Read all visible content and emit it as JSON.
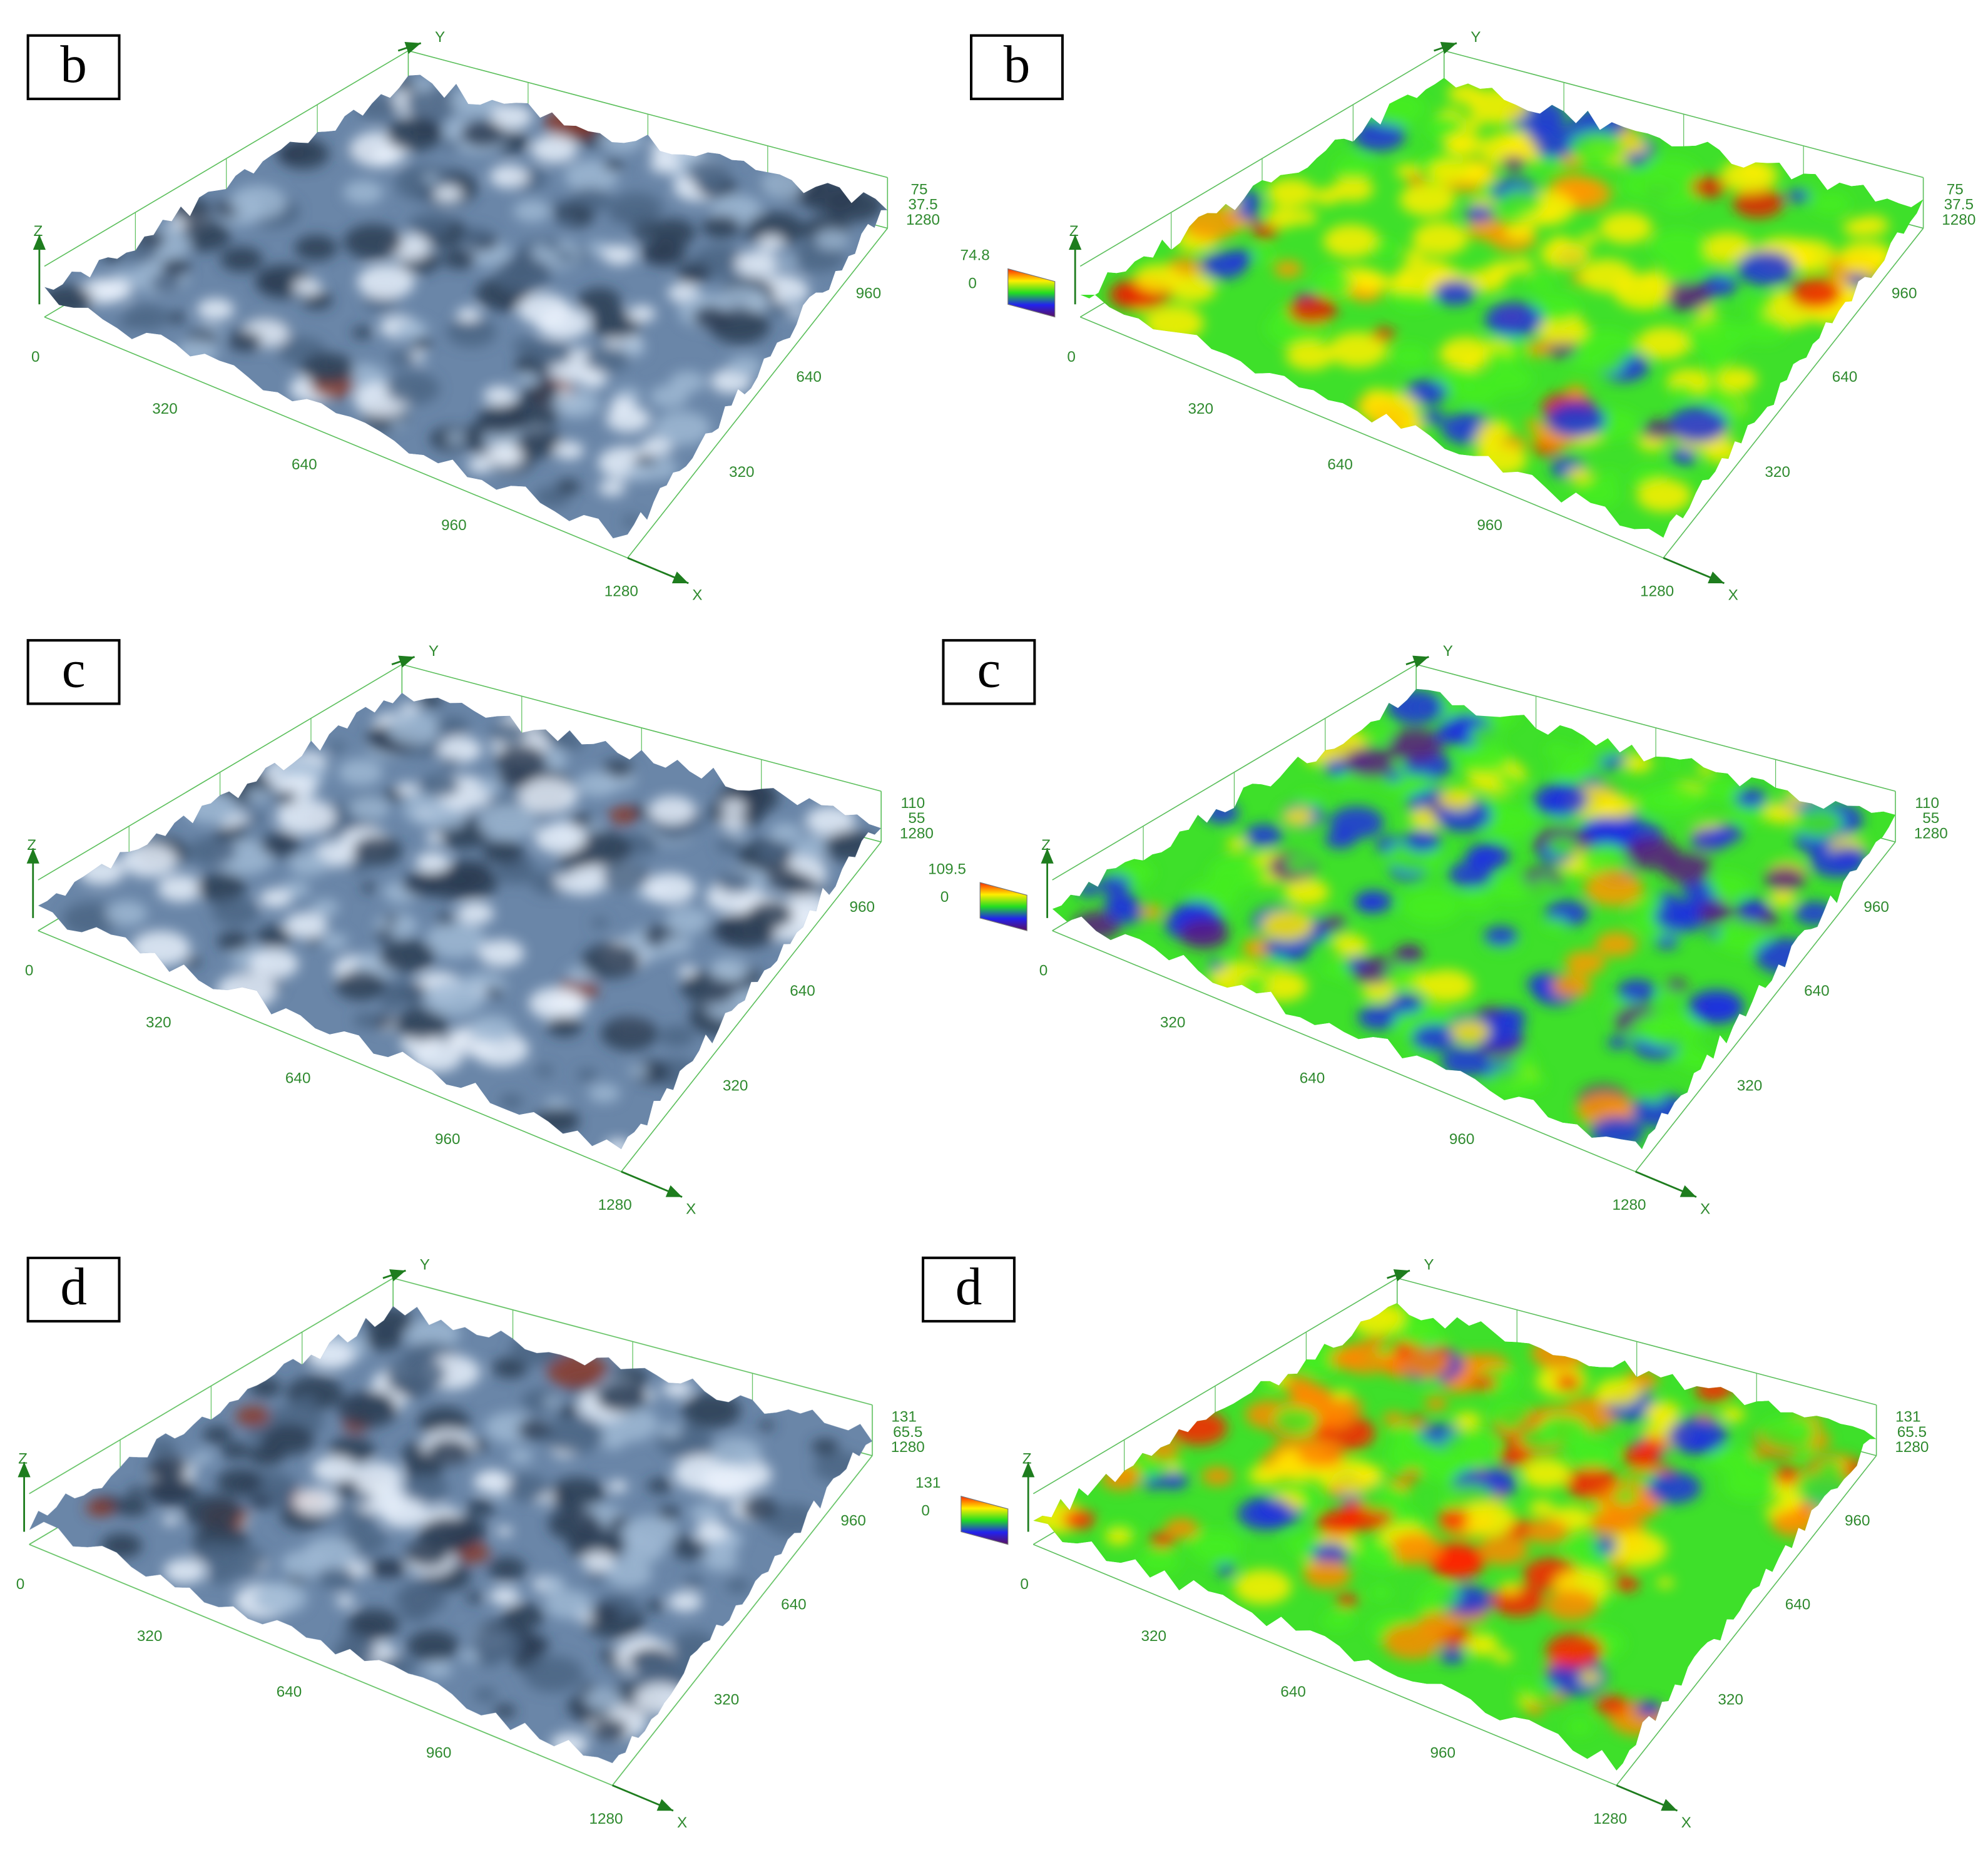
{
  "panels": [
    {
      "label": "b",
      "axes": {
        "z": "Z",
        "y": "Y",
        "x": "X"
      },
      "origin": "0",
      "top_labels": [
        "75",
        "37.5",
        "1280"
      ],
      "x_ticks": [
        "320",
        "640",
        "960",
        "1280"
      ],
      "y_ticks": [
        "320",
        "640",
        "960"
      ]
    },
    {
      "label": "b",
      "axes": {
        "z": "Z",
        "y": "Y",
        "x": "X"
      },
      "origin": "0",
      "top_labels": [
        "75",
        "37.5",
        "1280"
      ],
      "x_ticks": [
        "320",
        "640",
        "960",
        "1280"
      ],
      "y_ticks": [
        "320",
        "640",
        "960"
      ],
      "legend": [
        "74.8",
        "0"
      ]
    },
    {
      "label": "c",
      "axes": {
        "z": "Z",
        "y": "Y",
        "x": "X"
      },
      "origin": "0",
      "top_labels": [
        "110",
        "55",
        "1280"
      ],
      "x_ticks": [
        "320",
        "640",
        "960",
        "1280"
      ],
      "y_ticks": [
        "320",
        "640",
        "960"
      ]
    },
    {
      "label": "c",
      "axes": {
        "z": "Z",
        "y": "Y",
        "x": "X"
      },
      "origin": "0",
      "top_labels": [
        "110",
        "55",
        "1280"
      ],
      "x_ticks": [
        "320",
        "640",
        "960",
        "1280"
      ],
      "y_ticks": [
        "320",
        "640",
        "960"
      ],
      "legend": [
        "109.5",
        "0"
      ]
    },
    {
      "label": "d",
      "axes": {
        "z": "Z",
        "y": "Y",
        "x": "X"
      },
      "origin": "0",
      "top_labels": [
        "131",
        "65.5",
        "1280"
      ],
      "x_ticks": [
        "320",
        "640",
        "960",
        "1280"
      ],
      "y_ticks": [
        "320",
        "640",
        "960"
      ]
    },
    {
      "label": "d",
      "axes": {
        "z": "Z",
        "y": "Y",
        "x": "X"
      },
      "origin": "0",
      "top_labels": [
        "131",
        "65.5",
        "1280"
      ],
      "x_ticks": [
        "320",
        "640",
        "960",
        "1280"
      ],
      "y_ticks": [
        "320",
        "640",
        "960"
      ],
      "legend": [
        "131",
        "0"
      ]
    }
  ]
}
